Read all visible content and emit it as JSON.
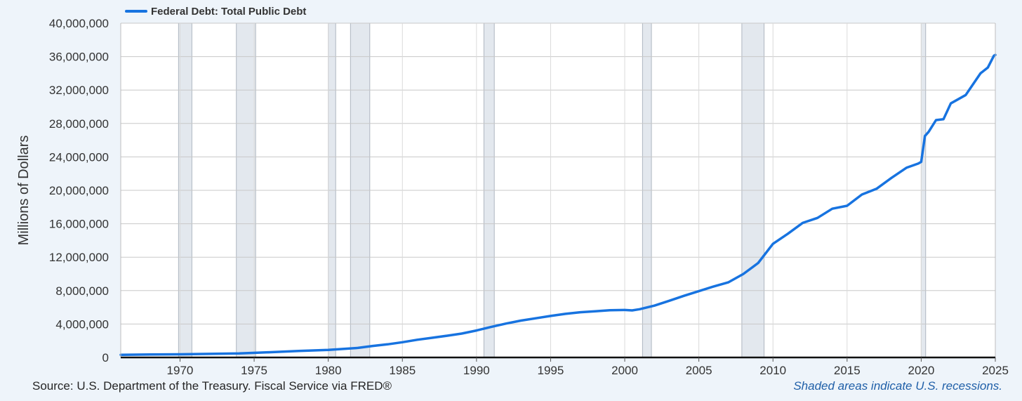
{
  "colors": {
    "series": "#1773e0",
    "recession": "#e3e8ee",
    "background": "#eef4fa",
    "plot": "#ffffff",
    "grid": "#c8c8c8"
  },
  "footer": {
    "source": "U.S. Department of the Treasury. Fiscal Service via FRED®",
    "source_prefix": "Source: ",
    "note": "Shaded areas indicate U.S. recessions."
  },
  "chart_data": {
    "type": "line",
    "title": "",
    "xlabel": "",
    "ylabel": "Millions of Dollars",
    "xlim": [
      1966.0,
      2025.0
    ],
    "ylim": [
      0,
      40000000
    ],
    "grid": true,
    "legend": {
      "placement": "top-left",
      "entries": [
        "Federal Debt: Total Public Debt"
      ]
    },
    "x_ticks": [
      1970,
      1975,
      1980,
      1985,
      1990,
      1995,
      2000,
      2005,
      2010,
      2015,
      2020,
      2025
    ],
    "x_tick_labels": [
      "1970",
      "1975",
      "1980",
      "1985",
      "1990",
      "1995",
      "2000",
      "2005",
      "2010",
      "2015",
      "2020",
      "2025"
    ],
    "y_ticks": [
      0,
      4000000,
      8000000,
      12000000,
      16000000,
      20000000,
      24000000,
      28000000,
      32000000,
      36000000,
      40000000
    ],
    "y_tick_labels": [
      "0",
      "4,000,000",
      "8,000,000",
      "12,000,000",
      "16,000,000",
      "20,000,000",
      "24,000,000",
      "28,000,000",
      "32,000,000",
      "36,000,000",
      "40,000,000"
    ],
    "recessions": [
      [
        1969.9,
        1970.8
      ],
      [
        1973.8,
        1975.1
      ],
      [
        1980.0,
        1980.5
      ],
      [
        1981.5,
        1982.8
      ],
      [
        1990.5,
        1991.2
      ],
      [
        2001.2,
        2001.8
      ],
      [
        2007.9,
        2009.4
      ],
      [
        2020.0,
        2020.3
      ]
    ],
    "series": [
      {
        "name": "Federal Debt: Total Public Debt",
        "x": [
          1966.0,
          1968.0,
          1970.0,
          1972.0,
          1974.0,
          1976.0,
          1978.0,
          1980.0,
          1982.0,
          1983.0,
          1984.0,
          1985.0,
          1986.0,
          1987.0,
          1988.0,
          1989.0,
          1990.0,
          1991.0,
          1992.0,
          1993.0,
          1994.0,
          1995.0,
          1996.0,
          1997.0,
          1998.0,
          1999.0,
          2000.0,
          2000.5,
          2001.0,
          2002.0,
          2003.0,
          2004.0,
          2005.0,
          2006.0,
          2007.0,
          2008.0,
          2008.5,
          2009.0,
          2010.0,
          2011.0,
          2012.0,
          2013.0,
          2014.0,
          2015.0,
          2016.0,
          2017.0,
          2018.0,
          2019.0,
          2019.8,
          2020.0,
          2020.25,
          2020.5,
          2021.0,
          2021.5,
          2022.0,
          2023.0,
          2024.0,
          2024.5,
          2024.9,
          2025.0
        ],
        "y": [
          320000,
          350000,
          380000,
          430000,
          480000,
          620000,
          780000,
          900000,
          1140000,
          1380000,
          1570000,
          1820000,
          2120000,
          2350000,
          2600000,
          2860000,
          3230000,
          3660000,
          4060000,
          4410000,
          4690000,
          4970000,
          5220000,
          5410000,
          5530000,
          5650000,
          5680000,
          5630000,
          5770000,
          6200000,
          6780000,
          7380000,
          7930000,
          8500000,
          9000000,
          9990000,
          10640000,
          11300000,
          13600000,
          14800000,
          16100000,
          16700000,
          17800000,
          18150000,
          19500000,
          20200000,
          21500000,
          22700000,
          23200000,
          23400000,
          26500000,
          27000000,
          28400000,
          28500000,
          30400000,
          31400000,
          34000000,
          34700000,
          36100000,
          36200000
        ]
      }
    ]
  }
}
